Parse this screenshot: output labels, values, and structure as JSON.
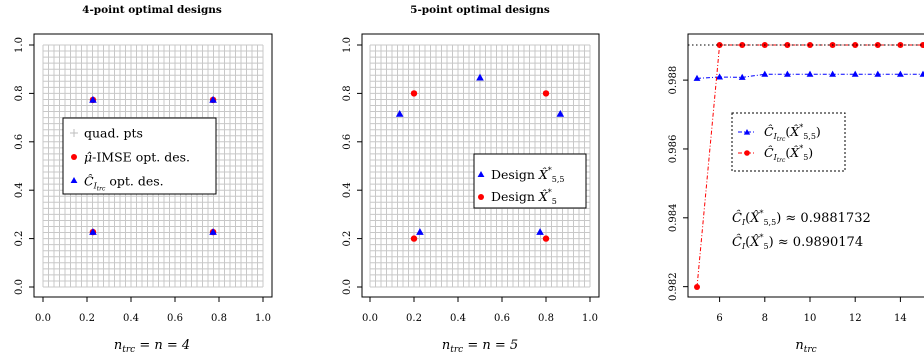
{
  "chart_data": [
    {
      "type": "scatter",
      "title": "4-point optimal designs",
      "xlabel": "n_trc = n = 4",
      "ylabel": "",
      "xlim": [
        0,
        1
      ],
      "ylim": [
        0,
        1
      ],
      "xticks": [
        "0.0",
        "0.2",
        "0.4",
        "0.6",
        "0.8",
        "1.0"
      ],
      "yticks": [
        "0.0",
        "0.2",
        "0.4",
        "0.6",
        "0.8",
        "1.0"
      ],
      "grid_points": 41,
      "legend_position": "center-left",
      "series": [
        {
          "name": "quad. pts",
          "marker": "plus",
          "color": "#bdbdbd",
          "points": "regular 41x41 grid on [0,1]"
        },
        {
          "name": "μ̂-IMSE opt. des.",
          "marker": "circle",
          "color": "#ff0000",
          "x": [
            0.227,
            0.773,
            0.227,
            0.773
          ],
          "y": [
            0.773,
            0.773,
            0.227,
            0.227
          ]
        },
        {
          "name": "Ĉ_Itrc opt. des.",
          "marker": "triangle",
          "color": "#0000ff",
          "x": [
            0.227,
            0.773,
            0.227,
            0.773
          ],
          "y": [
            0.773,
            0.773,
            0.227,
            0.227
          ]
        }
      ]
    },
    {
      "type": "scatter",
      "title": "5-point optimal designs",
      "xlabel": "n_trc = n = 5",
      "ylabel": "",
      "xlim": [
        0,
        1
      ],
      "ylim": [
        0,
        1
      ],
      "xticks": [
        "0.0",
        "0.2",
        "0.4",
        "0.6",
        "0.8",
        "1.0"
      ],
      "yticks": [
        "0.0",
        "0.2",
        "0.4",
        "0.6",
        "0.8",
        "1.0"
      ],
      "grid_points": 41,
      "legend_position": "center-right",
      "series": [
        {
          "name": "Design X̂*5,5",
          "marker": "triangle",
          "color": "#0000ff",
          "x": [
            0.5,
            0.135,
            0.865,
            0.227,
            0.773
          ],
          "y": [
            0.865,
            0.715,
            0.715,
            0.227,
            0.227
          ]
        },
        {
          "name": "Design X̂*5",
          "marker": "circle",
          "color": "#ff0000",
          "x": [
            0.2,
            0.8,
            0.5,
            0.2,
            0.8
          ],
          "y": [
            0.8,
            0.8,
            0.5,
            0.2,
            0.2
          ]
        }
      ]
    },
    {
      "type": "line",
      "title": "",
      "xlabel": "n_trc",
      "ylabel": "",
      "xlim": [
        4.8,
        15.2
      ],
      "ylim": [
        0.9818,
        0.9901
      ],
      "xticks": [
        "6",
        "8",
        "10",
        "12",
        "14"
      ],
      "yticks": [
        "0.982",
        "0.984",
        "0.986",
        "0.988"
      ],
      "legend_position": "upper-center",
      "annotations": [
        "Ĉ_I(X̂*5,5) ≈ 0.9881732",
        "Ĉ_I(X̂*5) ≈ 0.9890174"
      ],
      "series": [
        {
          "name": "Ĉ_Itrc(X̂*5,5)",
          "marker": "triangle",
          "color": "#0000ff",
          "line": "dash-dot",
          "x": [
            5,
            6,
            7,
            8,
            9,
            10,
            11,
            12,
            13,
            14,
            15
          ],
          "y": [
            0.98805,
            0.98809,
            0.98808,
            0.98817,
            0.98817,
            0.98817,
            0.98817,
            0.98817,
            0.98817,
            0.98817,
            0.98817
          ]
        },
        {
          "name": "Ĉ_Itrc(X̂*5)",
          "marker": "circle",
          "color": "#ff0000",
          "line": "dash-dot",
          "x": [
            5,
            6,
            7,
            8,
            9,
            10,
            11,
            12,
            13,
            14,
            15
          ],
          "y": [
            0.98199,
            0.98902,
            0.98902,
            0.98902,
            0.98902,
            0.98902,
            0.98902,
            0.98902,
            0.98902,
            0.98902,
            0.98902
          ]
        }
      ],
      "reference_lines": [
        {
          "y": 0.9890174,
          "style": "dotted",
          "color": "#000000"
        }
      ]
    }
  ]
}
